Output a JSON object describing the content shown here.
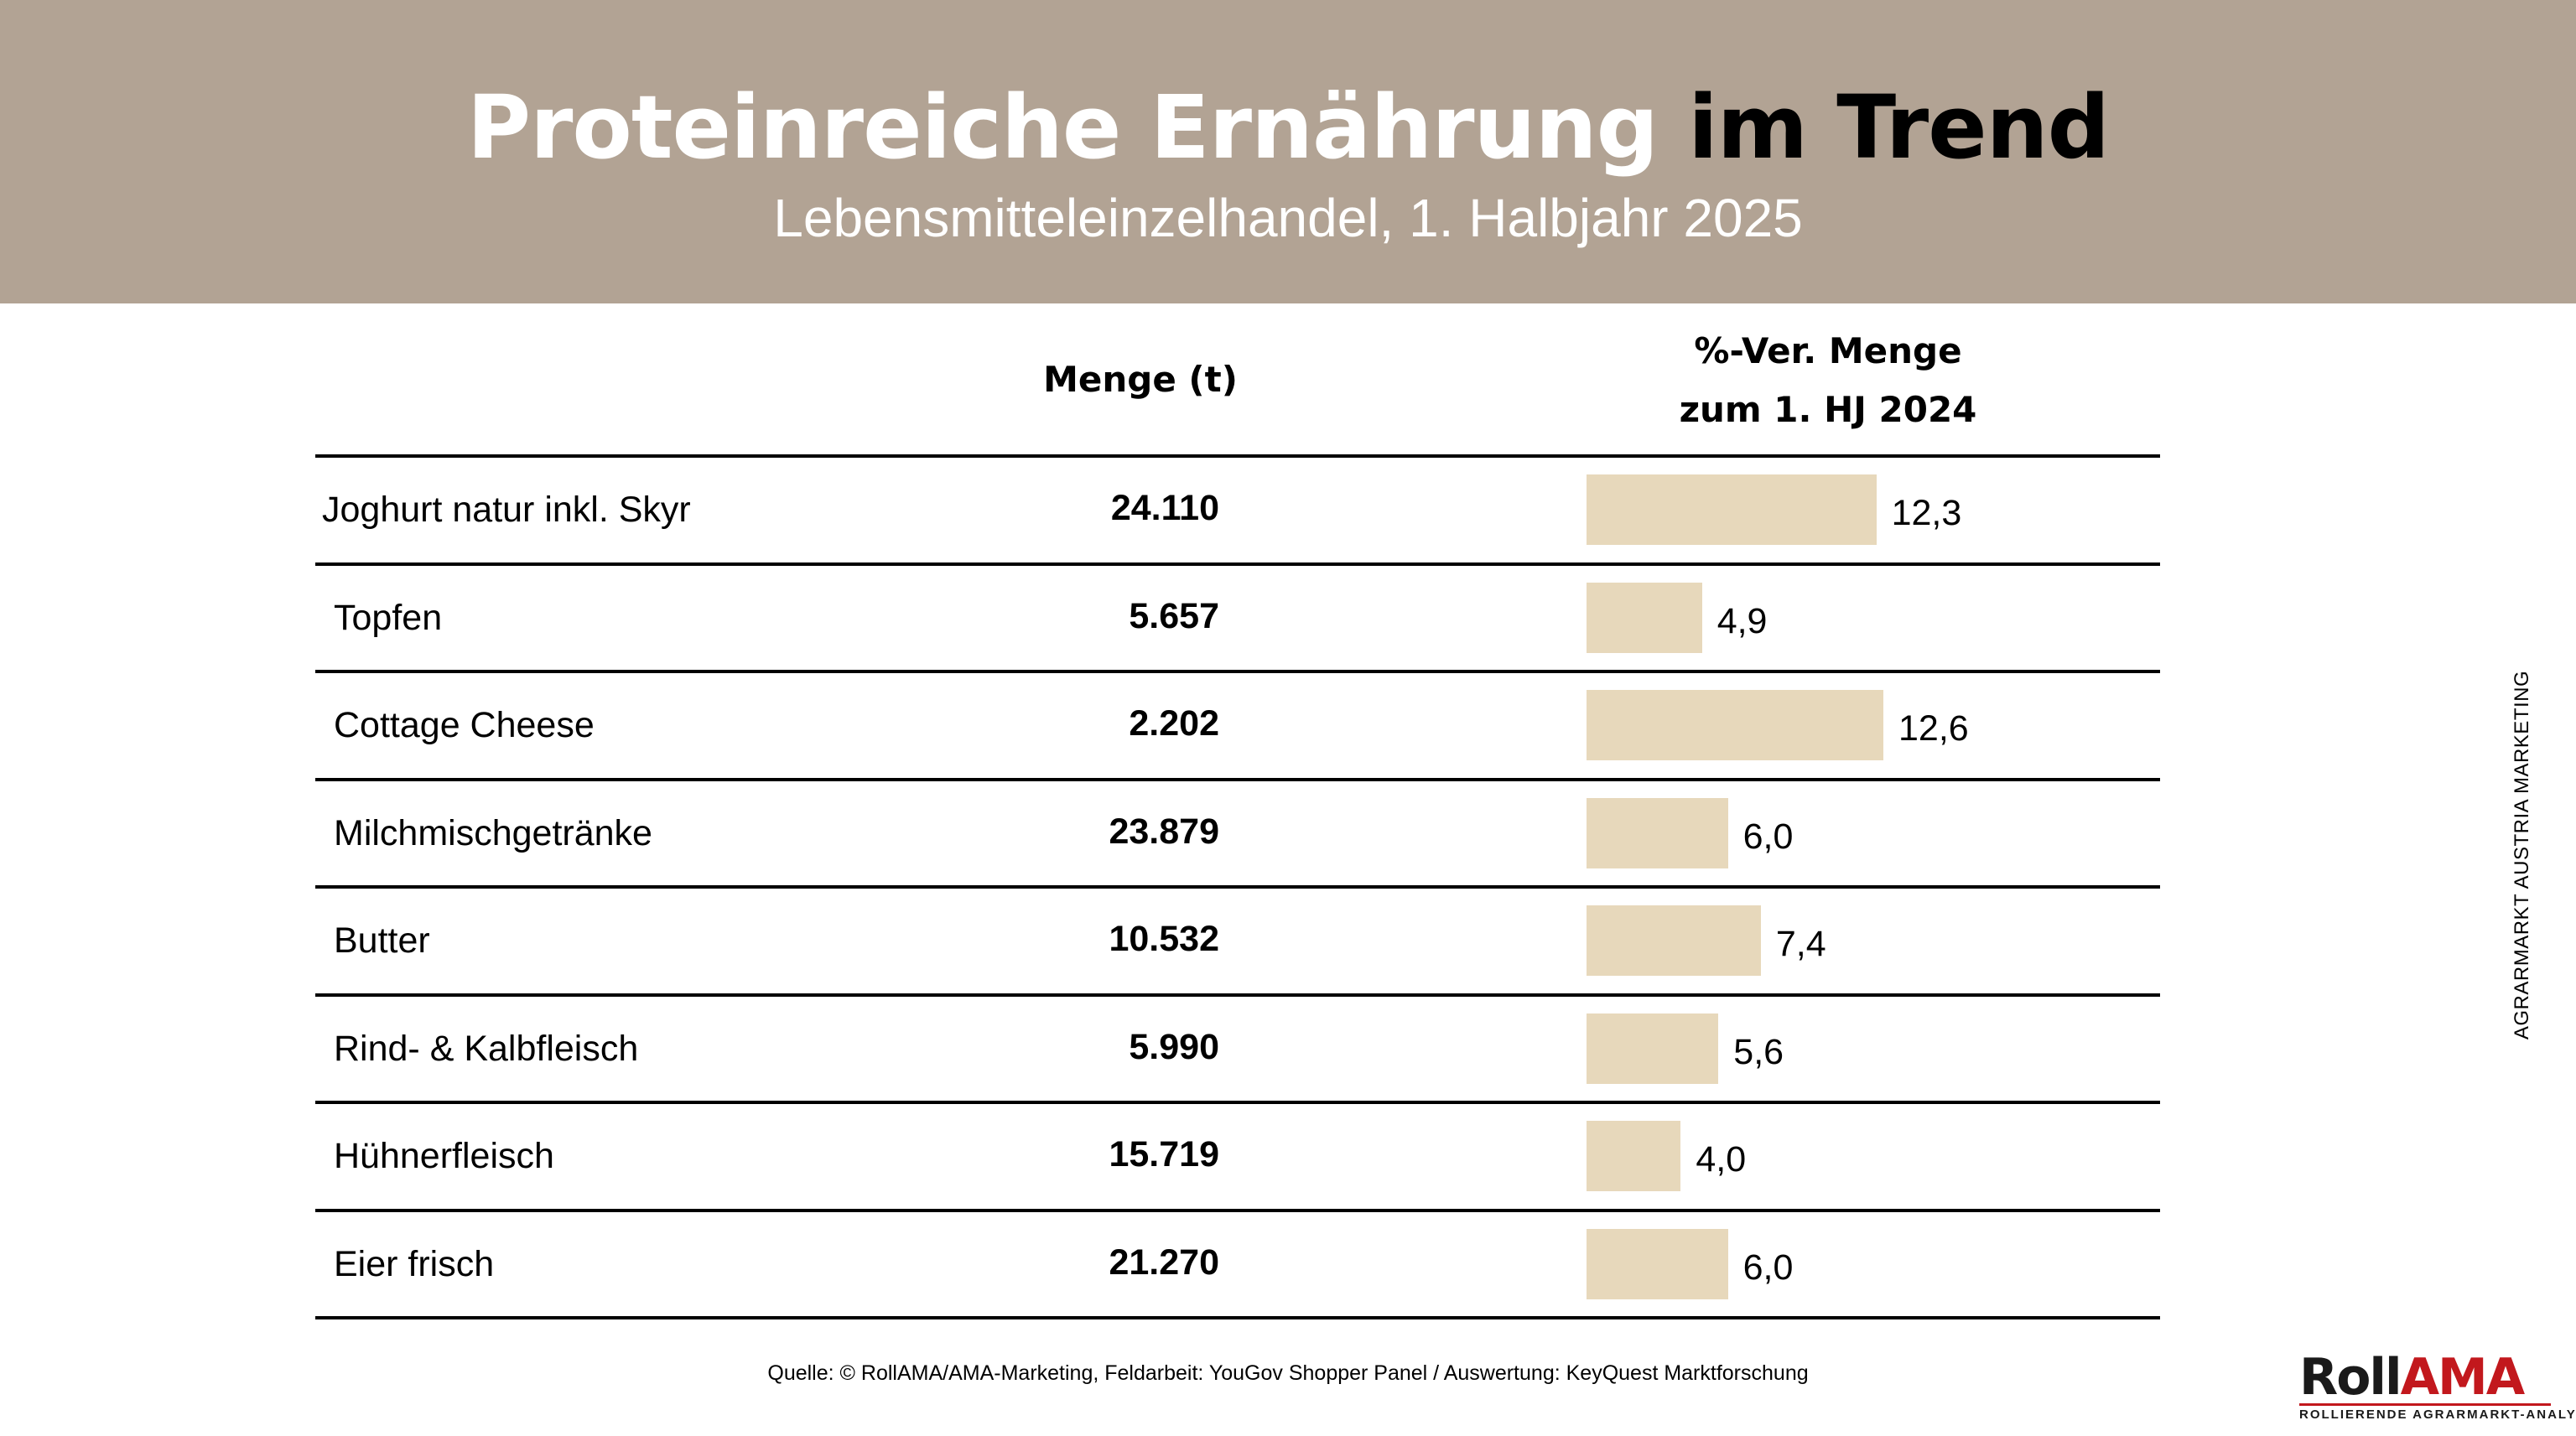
{
  "header": {
    "title_part1": "Proteinreiche Ernährung",
    "title_part2": "im Trend",
    "subtitle": "Lebensmitteleinzelhandel, 1. Halbjahr 2025"
  },
  "table": {
    "col_quantity": "Menge (t)",
    "col_change_line1": "%-Ver. Menge",
    "col_change_line2": "zum 1. HJ 2024"
  },
  "chart_data": {
    "type": "bar",
    "orientation": "horizontal",
    "categories": [
      "Joghurt natur inkl. Skyr",
      "Topfen",
      "Cottage Cheese",
      "Milchmischgetränke",
      "Butter",
      "Rind- & Kalbfleisch",
      "Hühnerfleisch",
      "Eier frisch"
    ],
    "quantities": [
      "24.110",
      "5.657",
      "2.202",
      "23.879",
      "10.532",
      "5.990",
      "15.719",
      "21.270"
    ],
    "values": [
      12.3,
      4.9,
      12.6,
      6.0,
      7.4,
      5.6,
      4.0,
      6.0
    ],
    "value_labels": [
      "12,3",
      "4,9",
      "12,6",
      "6,0",
      "7,4",
      "5,6",
      "4,0",
      "6,0"
    ],
    "bar_color": "#e7d8bb",
    "grid": false,
    "legend": "none"
  },
  "footer": {
    "source": "Quelle: © RollAMA/AMA-Marketing, Feldarbeit: YouGov Shopper Panel / Auswertung: KeyQuest Marktforschung",
    "side_text": "AGRARMARKT AUSTRIA MARKETING",
    "logo_roll": "Roll",
    "logo_ama": "AMA",
    "logo_tagline": "ROLLIERENDE AGRARMARKT-ANALYSE"
  },
  "colors": {
    "banner": "#b2a394",
    "bar": "#e7d8bb",
    "logo_red": "#c2181d"
  }
}
